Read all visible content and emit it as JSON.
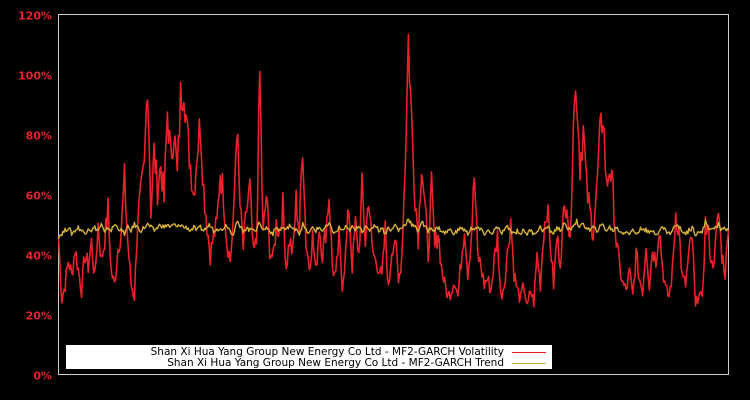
{
  "chart_data": {
    "type": "line",
    "title": "",
    "xlabel": "",
    "ylabel": "",
    "ylim": [
      0,
      120
    ],
    "y_ticks": [
      "0%",
      "20%",
      "40%",
      "60%",
      "80%",
      "100%",
      "120%"
    ],
    "y_tick_values": [
      0,
      20,
      40,
      60,
      80,
      100,
      120
    ],
    "grid": false,
    "legend_position": "lower-left inside",
    "background": "#000000",
    "axis_color": "#cccccc",
    "tick_color": "#e8212b",
    "series": [
      {
        "name": "Shan Xi Hua Yang Group New Energy Co Ltd - MF2-GARCH Volatility",
        "color": "#e8212b",
        "values": [
          46,
          25,
          30,
          38,
          33,
          42,
          35,
          28,
          40,
          36,
          44,
          32,
          50,
          38,
          45,
          55,
          34,
          30,
          42,
          48,
          65,
          44,
          30,
          26,
          52,
          60,
          68,
          100,
          55,
          74,
          62,
          70,
          58,
          88,
          72,
          82,
          66,
          92,
          98,
          80,
          70,
          60,
          75,
          84,
          62,
          50,
          40,
          46,
          50,
          68,
          60,
          45,
          38,
          50,
          84,
          56,
          42,
          55,
          62,
          40,
          44,
          100,
          46,
          60,
          42,
          38,
          50,
          48,
          56,
          36,
          45,
          40,
          58,
          48,
          78,
          44,
          36,
          46,
          34,
          50,
          40,
          48,
          60,
          36,
          32,
          45,
          30,
          40,
          56,
          36,
          50,
          40,
          62,
          44,
          60,
          42,
          38,
          36,
          32,
          48,
          28,
          42,
          46,
          30,
          40,
          70,
          112,
          84,
          60,
          46,
          72,
          56,
          40,
          62,
          42,
          48,
          36,
          30,
          26,
          28,
          32,
          26,
          38,
          50,
          34,
          45,
          66,
          40,
          36,
          30,
          32,
          28,
          38,
          46,
          26,
          30,
          40,
          52,
          34,
          28,
          25,
          30,
          22,
          28,
          24,
          40,
          30,
          48,
          56,
          44,
          30,
          46,
          38,
          52,
          60,
          42,
          88,
          95,
          70,
          82,
          62,
          54,
          48,
          60,
          78,
          88,
          62,
          70,
          60,
          44,
          36,
          30,
          28,
          34,
          26,
          40,
          32,
          28,
          44,
          30,
          42,
          38,
          50,
          36,
          28,
          26,
          34,
          54,
          48,
          32,
          30,
          40,
          46,
          22,
          28,
          24,
          50,
          46,
          36,
          42,
          54,
          40,
          34,
          48
        ],
        "approx_range": [
          20,
          112
        ]
      },
      {
        "name": "Shan Xi Hua Yang Group New Energy Co Ltd - MF2-GARCH Trend",
        "color": "#d4b13a",
        "values": [
          46,
          47,
          48,
          49,
          47,
          48,
          49,
          48,
          47,
          49,
          48,
          49,
          48,
          50,
          47,
          49,
          48,
          50,
          49,
          48,
          47,
          49,
          48,
          50,
          49,
          48,
          49,
          50,
          49,
          48,
          49,
          50,
          49,
          50,
          49,
          50,
          49,
          50,
          49,
          49,
          48,
          49,
          48,
          49,
          48,
          49,
          50,
          48,
          49,
          48,
          49,
          50,
          48,
          47,
          51,
          49,
          48,
          49,
          48,
          49,
          48,
          51,
          48,
          49,
          48,
          47,
          49,
          48,
          49,
          48,
          50,
          48,
          49,
          47,
          50,
          48,
          47,
          49,
          48,
          49,
          48,
          49,
          50,
          48,
          47,
          49,
          48,
          49,
          48,
          49,
          48,
          50,
          48,
          49,
          48,
          49,
          50,
          48,
          49,
          47,
          49,
          48,
          50,
          48,
          49,
          50,
          52,
          50,
          49,
          48,
          51,
          49,
          48,
          49,
          48,
          49,
          48,
          47,
          48,
          48,
          47,
          48,
          49,
          48,
          47,
          49,
          48,
          49,
          48,
          47,
          48,
          47,
          48,
          49,
          47,
          48,
          49,
          48,
          47,
          48,
          47,
          48,
          47,
          48,
          47,
          48,
          49,
          48,
          49,
          48,
          47,
          49,
          48,
          50,
          49,
          48,
          50,
          51,
          49,
          50,
          49,
          48,
          49,
          48,
          49,
          50,
          48,
          49,
          48,
          49,
          48,
          47,
          48,
          47,
          48,
          47,
          48,
          49,
          48,
          47,
          48,
          47,
          48,
          49,
          48,
          47,
          48,
          50,
          49,
          48,
          47,
          48,
          49,
          47,
          48,
          47,
          51,
          49,
          48,
          49,
          50,
          48,
          49,
          48
        ]
      }
    ]
  },
  "legend": {
    "items": [
      {
        "label": "Shan Xi Hua Yang Group New Energy Co Ltd - MF2-GARCH Volatility",
        "color": "#e8212b"
      },
      {
        "label": "Shan Xi Hua Yang Group New Energy Co Ltd - MF2-GARCH Trend",
        "color": "#d4b13a"
      }
    ]
  }
}
